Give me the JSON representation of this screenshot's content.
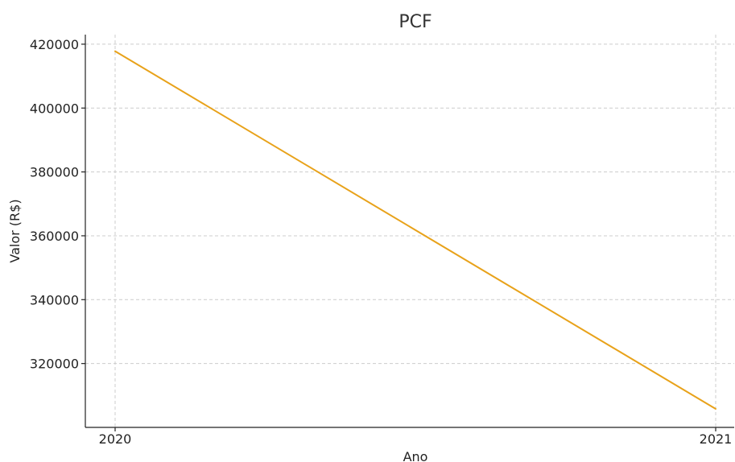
{
  "chart_data": {
    "type": "line",
    "title": "PCF",
    "xlabel": "Ano",
    "ylabel": "Valor (R$)",
    "x": [
      "2020",
      "2021"
    ],
    "series": [
      {
        "values": [
          417800,
          305800
        ],
        "color": "#E8A21A"
      }
    ],
    "ylim": [
      300000,
      423000
    ],
    "yticks": [
      320000,
      340000,
      360000,
      380000,
      400000,
      420000
    ],
    "ytick_labels": [
      "320000",
      "340000",
      "360000",
      "380000",
      "400000",
      "420000"
    ],
    "grid": true
  }
}
